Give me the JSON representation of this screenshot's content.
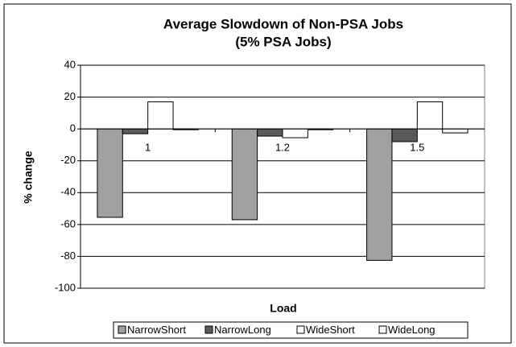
{
  "chart_data": {
    "type": "bar",
    "title": "Average Slowdown of Non-PSA Jobs",
    "subtitle": "(5% PSA Jobs)",
    "x_label": "Load",
    "y_label": "% change",
    "categories": [
      "1",
      "1.2",
      "1.5"
    ],
    "series": [
      {
        "name": "NarrowShort",
        "color": "#a0a0a0",
        "values": [
          -55.5,
          -57,
          -82.5
        ]
      },
      {
        "name": "NarrowLong",
        "color": "#5a5a5a",
        "values": [
          -3,
          -4.5,
          -8
        ]
      },
      {
        "name": "WideShort",
        "color": "#ffffff",
        "values": [
          17,
          -5.5,
          17
        ]
      },
      {
        "name": "WideLong",
        "color": "#f4f4f4",
        "values": [
          -0.5,
          -0.5,
          -2.5
        ]
      }
    ],
    "ylim": [
      -100,
      40
    ],
    "yticks": [
      -100,
      -80,
      -60,
      -40,
      -20,
      0,
      20,
      40
    ],
    "grid": true,
    "legend": "bottom"
  }
}
